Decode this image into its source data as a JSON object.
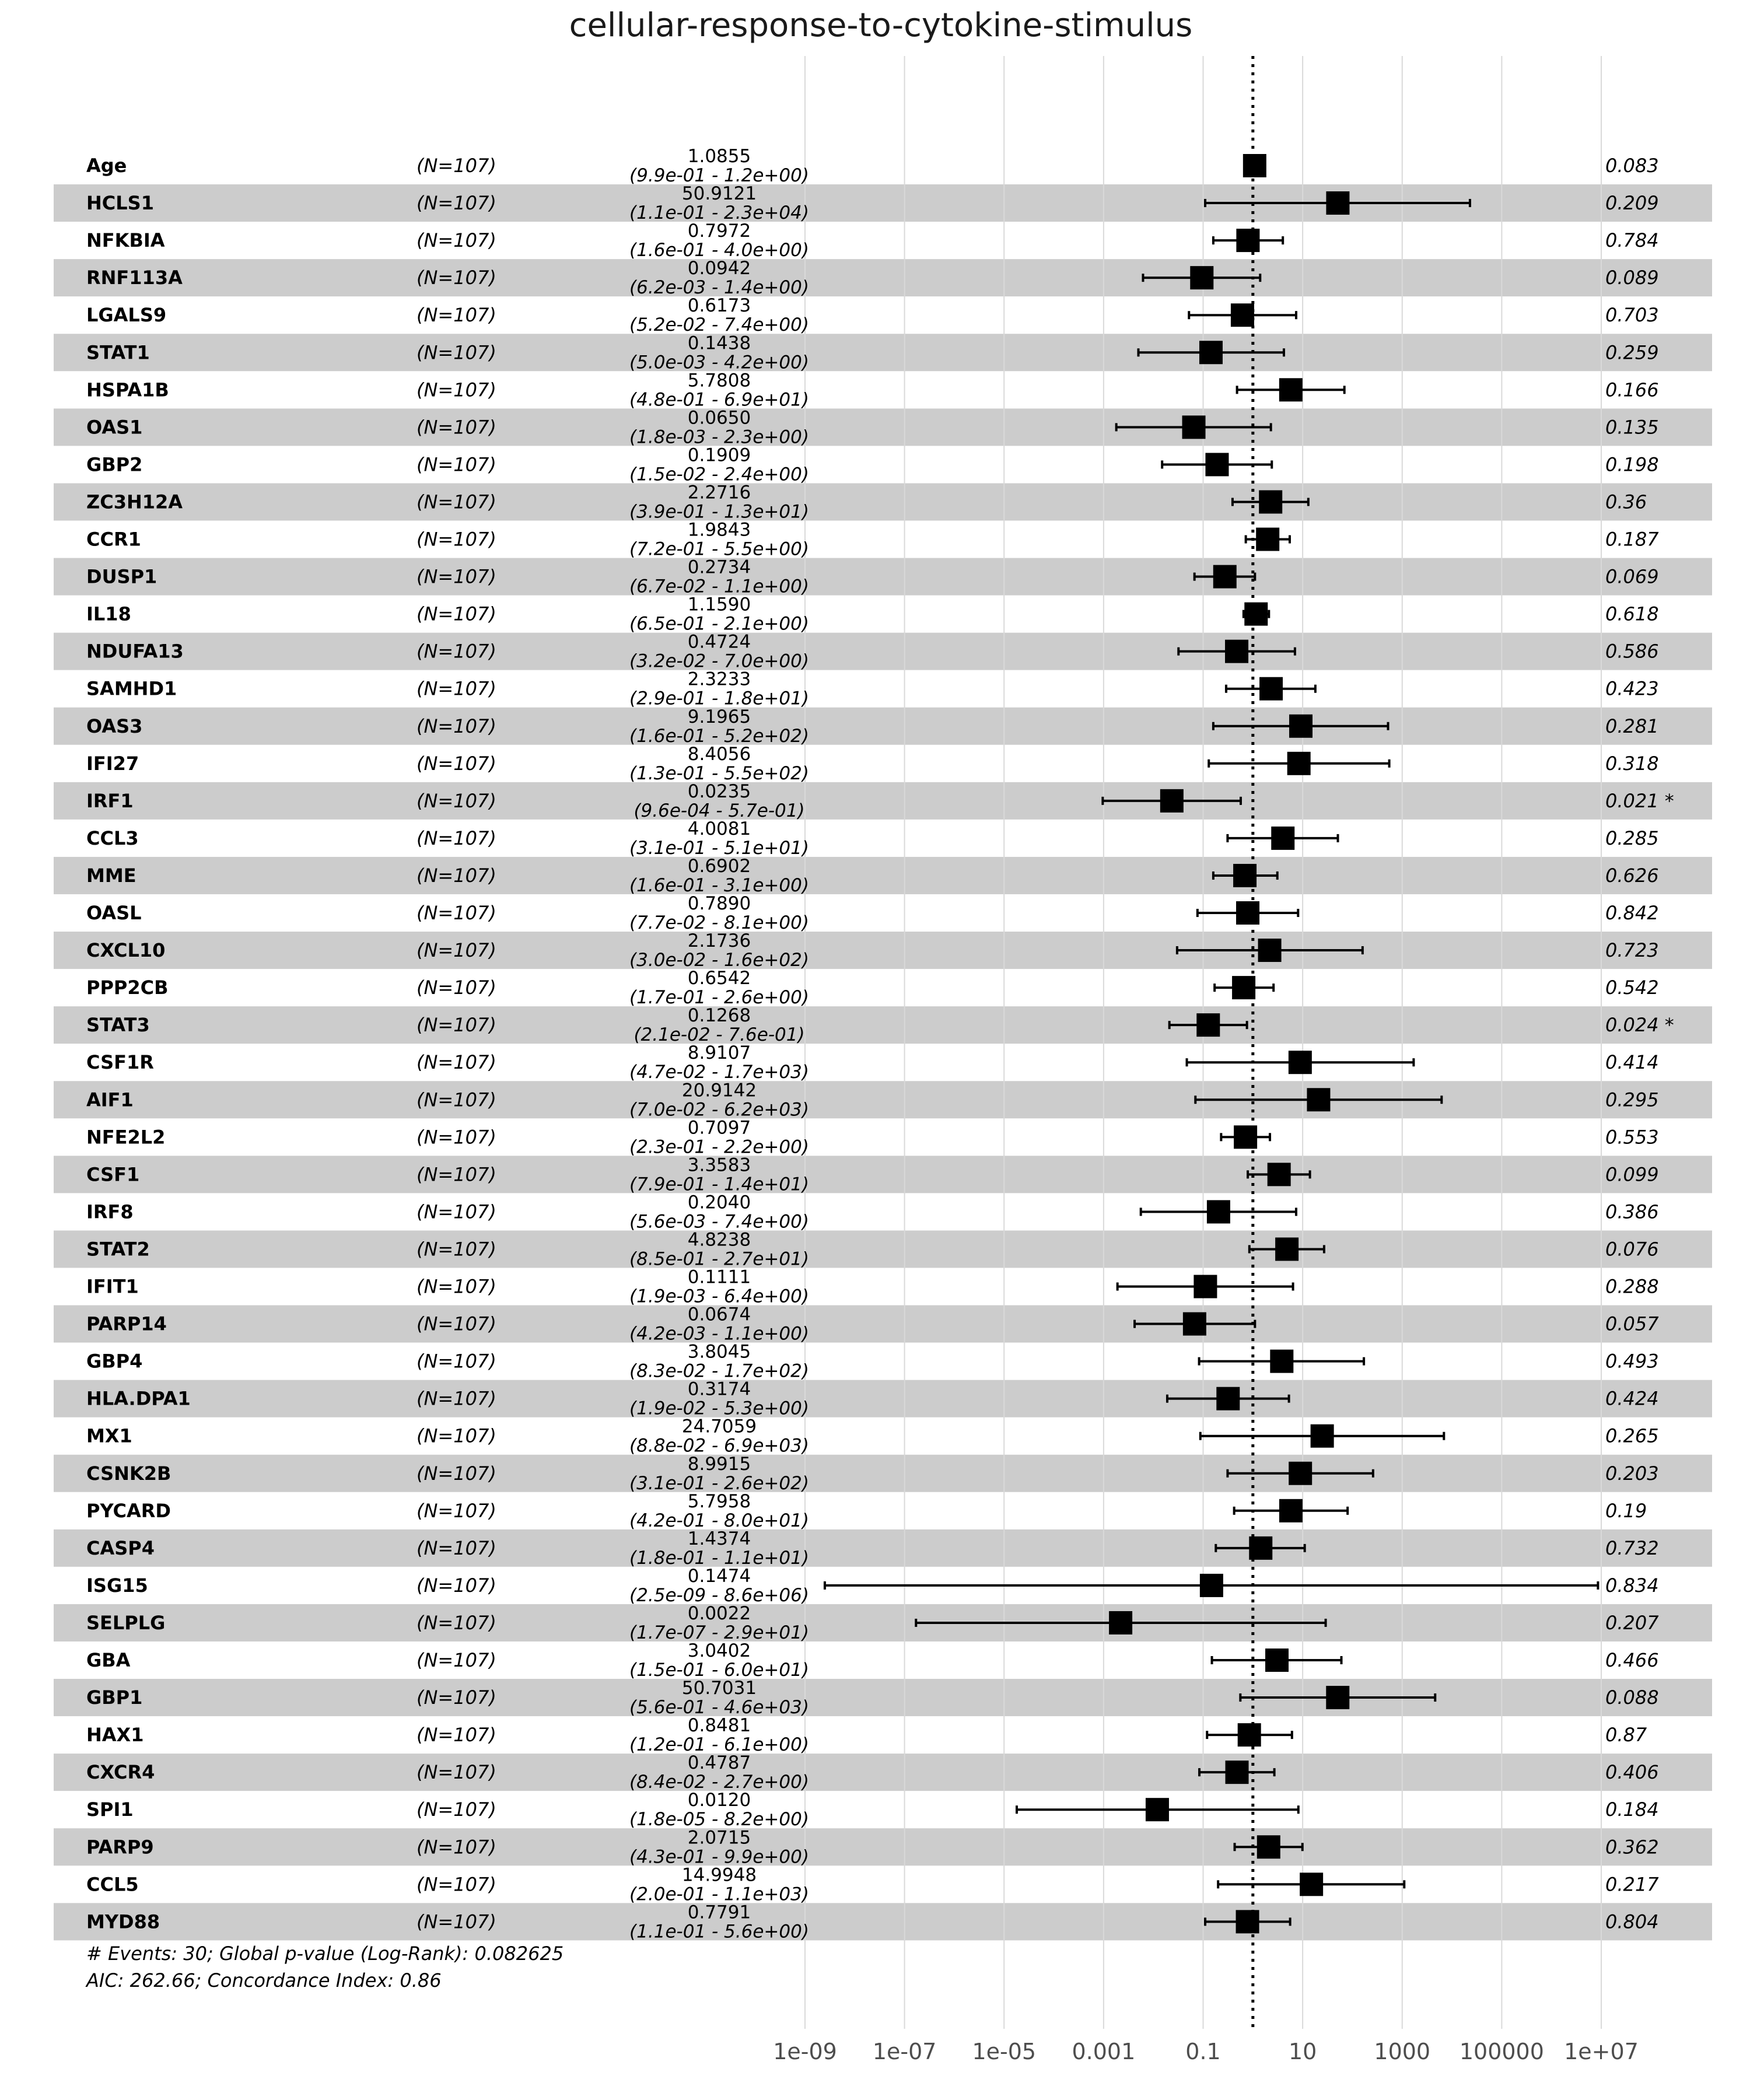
{
  "chart_data": {
    "type": "forest",
    "title": "cellular-response-to-cytokine-stimulus",
    "x_scale": "log10",
    "xlim": [
      1e-09,
      10000000.0
    ],
    "x_ticks": [
      {
        "value": 1e-09,
        "label": "1e-09"
      },
      {
        "value": 1e-07,
        "label": "1e-07"
      },
      {
        "value": 1e-05,
        "label": "1e-05"
      },
      {
        "value": 0.001,
        "label": "0.001"
      },
      {
        "value": 0.1,
        "label": "0.1"
      },
      {
        "value": 10,
        "label": "10"
      },
      {
        "value": 1000,
        "label": "1000"
      },
      {
        "value": 100000,
        "label": "100000"
      },
      {
        "value": 10000000.0,
        "label": "1e+07"
      }
    ],
    "reference_line": 1,
    "columns": [
      "variable",
      "n",
      "hazard_ratio",
      "ci",
      "p_value"
    ],
    "rows": [
      {
        "variable": "Age",
        "n": "(N=107)",
        "hr_label": "1.0855",
        "ci_label": "(9.9e-01 - 1.2e+00)",
        "hr": 1.0855,
        "lower": 0.99,
        "upper": 1.2,
        "p": "0.083"
      },
      {
        "variable": "HCLS1",
        "n": "(N=107)",
        "hr_label": "50.9121",
        "ci_label": "(1.1e-01 - 2.3e+04)",
        "hr": 50.9121,
        "lower": 0.11,
        "upper": 23000,
        "p": "0.209"
      },
      {
        "variable": "NFKBIA",
        "n": "(N=107)",
        "hr_label": "0.7972",
        "ci_label": "(1.6e-01 - 4.0e+00)",
        "hr": 0.7972,
        "lower": 0.16,
        "upper": 4.0,
        "p": "0.784"
      },
      {
        "variable": "RNF113A",
        "n": "(N=107)",
        "hr_label": "0.0942",
        "ci_label": "(6.2e-03 - 1.4e+00)",
        "hr": 0.0942,
        "lower": 0.0062,
        "upper": 1.4,
        "p": "0.089"
      },
      {
        "variable": "LGALS9",
        "n": "(N=107)",
        "hr_label": "0.6173",
        "ci_label": "(5.2e-02 - 7.4e+00)",
        "hr": 0.6173,
        "lower": 0.052,
        "upper": 7.4,
        "p": "0.703"
      },
      {
        "variable": "STAT1",
        "n": "(N=107)",
        "hr_label": "0.1438",
        "ci_label": "(5.0e-03 - 4.2e+00)",
        "hr": 0.1438,
        "lower": 0.005,
        "upper": 4.2,
        "p": "0.259"
      },
      {
        "variable": "HSPA1B",
        "n": "(N=107)",
        "hr_label": "5.7808",
        "ci_label": "(4.8e-01 - 6.9e+01)",
        "hr": 5.7808,
        "lower": 0.48,
        "upper": 69,
        "p": "0.166"
      },
      {
        "variable": "OAS1",
        "n": "(N=107)",
        "hr_label": "0.0650",
        "ci_label": "(1.8e-03 - 2.3e+00)",
        "hr": 0.065,
        "lower": 0.0018,
        "upper": 2.3,
        "p": "0.135"
      },
      {
        "variable": "GBP2",
        "n": "(N=107)",
        "hr_label": "0.1909",
        "ci_label": "(1.5e-02 - 2.4e+00)",
        "hr": 0.1909,
        "lower": 0.015,
        "upper": 2.4,
        "p": "0.198"
      },
      {
        "variable": "ZC3H12A",
        "n": "(N=107)",
        "hr_label": "2.2716",
        "ci_label": "(3.9e-01 - 1.3e+01)",
        "hr": 2.2716,
        "lower": 0.39,
        "upper": 13,
        "p": "0.36"
      },
      {
        "variable": "CCR1",
        "n": "(N=107)",
        "hr_label": "1.9843",
        "ci_label": "(7.2e-01 - 5.5e+00)",
        "hr": 1.9843,
        "lower": 0.72,
        "upper": 5.5,
        "p": "0.187"
      },
      {
        "variable": "DUSP1",
        "n": "(N=107)",
        "hr_label": "0.2734",
        "ci_label": "(6.7e-02 - 1.1e+00)",
        "hr": 0.2734,
        "lower": 0.067,
        "upper": 1.1,
        "p": "0.069"
      },
      {
        "variable": "IL18",
        "n": "(N=107)",
        "hr_label": "1.1590",
        "ci_label": "(6.5e-01 - 2.1e+00)",
        "hr": 1.159,
        "lower": 0.65,
        "upper": 2.1,
        "p": "0.618"
      },
      {
        "variable": "NDUFA13",
        "n": "(N=107)",
        "hr_label": "0.4724",
        "ci_label": "(3.2e-02 - 7.0e+00)",
        "hr": 0.4724,
        "lower": 0.032,
        "upper": 7.0,
        "p": "0.586"
      },
      {
        "variable": "SAMHD1",
        "n": "(N=107)",
        "hr_label": "2.3233",
        "ci_label": "(2.9e-01 - 1.8e+01)",
        "hr": 2.3233,
        "lower": 0.29,
        "upper": 18,
        "p": "0.423"
      },
      {
        "variable": "OAS3",
        "n": "(N=107)",
        "hr_label": "9.1965",
        "ci_label": "(1.6e-01 - 5.2e+02)",
        "hr": 9.1965,
        "lower": 0.16,
        "upper": 520,
        "p": "0.281"
      },
      {
        "variable": "IFI27",
        "n": "(N=107)",
        "hr_label": "8.4056",
        "ci_label": "(1.3e-01 - 5.5e+02)",
        "hr": 8.4056,
        "lower": 0.13,
        "upper": 550,
        "p": "0.318"
      },
      {
        "variable": "IRF1",
        "n": "(N=107)",
        "hr_label": "0.0235",
        "ci_label": "(9.6e-04 - 5.7e-01)",
        "hr": 0.0235,
        "lower": 0.00096,
        "upper": 0.57,
        "p": "0.021 *"
      },
      {
        "variable": "CCL3",
        "n": "(N=107)",
        "hr_label": "4.0081",
        "ci_label": "(3.1e-01 - 5.1e+01)",
        "hr": 4.0081,
        "lower": 0.31,
        "upper": 51,
        "p": "0.285"
      },
      {
        "variable": "MME",
        "n": "(N=107)",
        "hr_label": "0.6902",
        "ci_label": "(1.6e-01 - 3.1e+00)",
        "hr": 0.6902,
        "lower": 0.16,
        "upper": 3.1,
        "p": "0.626"
      },
      {
        "variable": "OASL",
        "n": "(N=107)",
        "hr_label": "0.7890",
        "ci_label": "(7.7e-02 - 8.1e+00)",
        "hr": 0.789,
        "lower": 0.077,
        "upper": 8.1,
        "p": "0.842"
      },
      {
        "variable": "CXCL10",
        "n": "(N=107)",
        "hr_label": "2.1736",
        "ci_label": "(3.0e-02 - 1.6e+02)",
        "hr": 2.1736,
        "lower": 0.03,
        "upper": 160,
        "p": "0.723"
      },
      {
        "variable": "PPP2CB",
        "n": "(N=107)",
        "hr_label": "0.6542",
        "ci_label": "(1.7e-01 - 2.6e+00)",
        "hr": 0.6542,
        "lower": 0.17,
        "upper": 2.6,
        "p": "0.542"
      },
      {
        "variable": "STAT3",
        "n": "(N=107)",
        "hr_label": "0.1268",
        "ci_label": "(2.1e-02 - 7.6e-01)",
        "hr": 0.1268,
        "lower": 0.021,
        "upper": 0.76,
        "p": "0.024 *"
      },
      {
        "variable": "CSF1R",
        "n": "(N=107)",
        "hr_label": "8.9107",
        "ci_label": "(4.7e-02 - 1.7e+03)",
        "hr": 8.9107,
        "lower": 0.047,
        "upper": 1700,
        "p": "0.414"
      },
      {
        "variable": "AIF1",
        "n": "(N=107)",
        "hr_label": "20.9142",
        "ci_label": "(7.0e-02 - 6.2e+03)",
        "hr": 20.9142,
        "lower": 0.07,
        "upper": 6200,
        "p": "0.295"
      },
      {
        "variable": "NFE2L2",
        "n": "(N=107)",
        "hr_label": "0.7097",
        "ci_label": "(2.3e-01 - 2.2e+00)",
        "hr": 0.7097,
        "lower": 0.23,
        "upper": 2.2,
        "p": "0.553"
      },
      {
        "variable": "CSF1",
        "n": "(N=107)",
        "hr_label": "3.3583",
        "ci_label": "(7.9e-01 - 1.4e+01)",
        "hr": 3.3583,
        "lower": 0.79,
        "upper": 14,
        "p": "0.099"
      },
      {
        "variable": "IRF8",
        "n": "(N=107)",
        "hr_label": "0.2040",
        "ci_label": "(5.6e-03 - 7.4e+00)",
        "hr": 0.204,
        "lower": 0.0056,
        "upper": 7.4,
        "p": "0.386"
      },
      {
        "variable": "STAT2",
        "n": "(N=107)",
        "hr_label": "4.8238",
        "ci_label": "(8.5e-01 - 2.7e+01)",
        "hr": 4.8238,
        "lower": 0.85,
        "upper": 27,
        "p": "0.076"
      },
      {
        "variable": "IFIT1",
        "n": "(N=107)",
        "hr_label": "0.1111",
        "ci_label": "(1.9e-03 - 6.4e+00)",
        "hr": 0.1111,
        "lower": 0.0019,
        "upper": 6.4,
        "p": "0.288"
      },
      {
        "variable": "PARP14",
        "n": "(N=107)",
        "hr_label": "0.0674",
        "ci_label": "(4.2e-03 - 1.1e+00)",
        "hr": 0.0674,
        "lower": 0.0042,
        "upper": 1.1,
        "p": "0.057"
      },
      {
        "variable": "GBP4",
        "n": "(N=107)",
        "hr_label": "3.8045",
        "ci_label": "(8.3e-02 - 1.7e+02)",
        "hr": 3.8045,
        "lower": 0.083,
        "upper": 170,
        "p": "0.493"
      },
      {
        "variable": "HLA.DPA1",
        "n": "(N=107)",
        "hr_label": "0.3174",
        "ci_label": "(1.9e-02 - 5.3e+00)",
        "hr": 0.3174,
        "lower": 0.019,
        "upper": 5.3,
        "p": "0.424"
      },
      {
        "variable": "MX1",
        "n": "(N=107)",
        "hr_label": "24.7059",
        "ci_label": "(8.8e-02 - 6.9e+03)",
        "hr": 24.7059,
        "lower": 0.088,
        "upper": 6900,
        "p": "0.265"
      },
      {
        "variable": "CSNK2B",
        "n": "(N=107)",
        "hr_label": "8.9915",
        "ci_label": "(3.1e-01 - 2.6e+02)",
        "hr": 8.9915,
        "lower": 0.31,
        "upper": 260,
        "p": "0.203"
      },
      {
        "variable": "PYCARD",
        "n": "(N=107)",
        "hr_label": "5.7958",
        "ci_label": "(4.2e-01 - 8.0e+01)",
        "hr": 5.7958,
        "lower": 0.42,
        "upper": 80,
        "p": "0.19"
      },
      {
        "variable": "CASP4",
        "n": "(N=107)",
        "hr_label": "1.4374",
        "ci_label": "(1.8e-01 - 1.1e+01)",
        "hr": 1.4374,
        "lower": 0.18,
        "upper": 11,
        "p": "0.732"
      },
      {
        "variable": "ISG15",
        "n": "(N=107)",
        "hr_label": "0.1474",
        "ci_label": "(2.5e-09 - 8.6e+06)",
        "hr": 0.1474,
        "lower": 2.5e-09,
        "upper": 8600000.0,
        "p": "0.834"
      },
      {
        "variable": "SELPLG",
        "n": "(N=107)",
        "hr_label": "0.0022",
        "ci_label": "(1.7e-07 - 2.9e+01)",
        "hr": 0.0022,
        "lower": 1.7e-07,
        "upper": 29,
        "p": "0.207"
      },
      {
        "variable": "GBA",
        "n": "(N=107)",
        "hr_label": "3.0402",
        "ci_label": "(1.5e-01 - 6.0e+01)",
        "hr": 3.0402,
        "lower": 0.15,
        "upper": 60,
        "p": "0.466"
      },
      {
        "variable": "GBP1",
        "n": "(N=107)",
        "hr_label": "50.7031",
        "ci_label": "(5.6e-01 - 4.6e+03)",
        "hr": 50.7031,
        "lower": 0.56,
        "upper": 4600,
        "p": "0.088"
      },
      {
        "variable": "HAX1",
        "n": "(N=107)",
        "hr_label": "0.8481",
        "ci_label": "(1.2e-01 - 6.1e+00)",
        "hr": 0.8481,
        "lower": 0.12,
        "upper": 6.1,
        "p": "0.87"
      },
      {
        "variable": "CXCR4",
        "n": "(N=107)",
        "hr_label": "0.4787",
        "ci_label": "(8.4e-02 - 2.7e+00)",
        "hr": 0.4787,
        "lower": 0.084,
        "upper": 2.7,
        "p": "0.406"
      },
      {
        "variable": "SPI1",
        "n": "(N=107)",
        "hr_label": "0.0120",
        "ci_label": "(1.8e-05 - 8.2e+00)",
        "hr": 0.012,
        "lower": 1.8e-05,
        "upper": 8.2,
        "p": "0.184"
      },
      {
        "variable": "PARP9",
        "n": "(N=107)",
        "hr_label": "2.0715",
        "ci_label": "(4.3e-01 - 9.9e+00)",
        "hr": 2.0715,
        "lower": 0.43,
        "upper": 9.9,
        "p": "0.362"
      },
      {
        "variable": "CCL5",
        "n": "(N=107)",
        "hr_label": "14.9948",
        "ci_label": "(2.0e-01 - 1.1e+03)",
        "hr": 14.9948,
        "lower": 0.2,
        "upper": 1100,
        "p": "0.217"
      },
      {
        "variable": "MYD88",
        "n": "(N=107)",
        "hr_label": "0.7791",
        "ci_label": "(1.1e-01 - 5.6e+00)",
        "hr": 0.7791,
        "lower": 0.11,
        "upper": 5.6,
        "p": "0.804"
      }
    ],
    "footer": [
      "# Events: 30; Global p-value (Log-Rank): 0.082625",
      "AIC: 262.66; Concordance Index: 0.86"
    ],
    "colors": {
      "stripe": "#cccccc",
      "grid": "#d9d9d9",
      "mark": "#000000"
    }
  }
}
